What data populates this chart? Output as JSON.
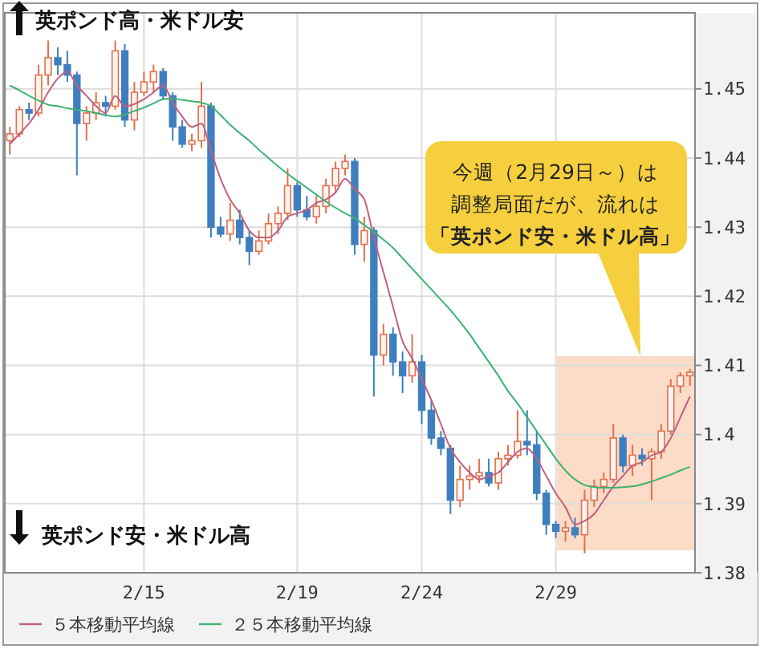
{
  "chart_data": {
    "type": "candlestick",
    "categories": [
      null,
      null,
      null,
      null,
      null,
      null,
      null,
      null,
      null,
      null,
      null,
      null,
      null,
      null,
      "2/15",
      null,
      null,
      null,
      null,
      null,
      null,
      null,
      null,
      null,
      null,
      null,
      null,
      null,
      null,
      null,
      "2/19",
      null,
      null,
      null,
      null,
      null,
      null,
      null,
      null,
      null,
      null,
      null,
      null,
      "2/24",
      null,
      null,
      null,
      null,
      null,
      null,
      null,
      null,
      null,
      null,
      null,
      null,
      null,
      "2/29",
      null,
      null,
      null,
      null,
      null,
      null,
      null,
      null,
      null,
      null,
      null,
      null,
      null,
      null
    ],
    "ohlc": [
      [
        1.4425,
        1.4445,
        1.4405,
        1.4435
      ],
      [
        1.4435,
        1.4475,
        1.443,
        1.447
      ],
      [
        1.447,
        1.448,
        1.4455,
        1.4465
      ],
      [
        1.4465,
        1.4535,
        1.446,
        1.452
      ],
      [
        1.452,
        1.457,
        1.4505,
        1.4545
      ],
      [
        1.4545,
        1.456,
        1.452,
        1.4535
      ],
      [
        1.4535,
        1.4555,
        1.451,
        1.452
      ],
      [
        1.452,
        1.4525,
        1.4375,
        1.445
      ],
      [
        1.445,
        1.4475,
        1.4425,
        1.4465
      ],
      [
        1.4465,
        1.4495,
        1.4455,
        1.448
      ],
      [
        1.448,
        1.449,
        1.446,
        1.4475
      ],
      [
        1.4475,
        1.457,
        1.447,
        1.4555
      ],
      [
        1.4555,
        1.4565,
        1.4445,
        1.4455
      ],
      [
        1.4455,
        1.451,
        1.444,
        1.4495
      ],
      [
        1.4495,
        1.4525,
        1.449,
        1.451
      ],
      [
        1.451,
        1.4535,
        1.4495,
        1.4525
      ],
      [
        1.4525,
        1.453,
        1.4485,
        1.449
      ],
      [
        1.449,
        1.4495,
        1.4425,
        1.4445
      ],
      [
        1.4445,
        1.4455,
        1.4415,
        1.442
      ],
      [
        1.442,
        1.4435,
        1.441,
        1.4425
      ],
      [
        1.4425,
        1.451,
        1.4415,
        1.4475
      ],
      [
        1.4475,
        1.448,
        1.4285,
        1.43
      ],
      [
        1.43,
        1.4315,
        1.4285,
        1.429
      ],
      [
        1.429,
        1.4335,
        1.428,
        1.431
      ],
      [
        1.431,
        1.4325,
        1.4275,
        1.4285
      ],
      [
        1.4285,
        1.4295,
        1.4245,
        1.4265
      ],
      [
        1.4265,
        1.4295,
        1.426,
        1.428
      ],
      [
        1.428,
        1.432,
        1.4275,
        1.4305
      ],
      [
        1.4305,
        1.433,
        1.429,
        1.432
      ],
      [
        1.432,
        1.4385,
        1.431,
        1.436
      ],
      [
        1.436,
        1.4365,
        1.4315,
        1.4325
      ],
      [
        1.4325,
        1.4345,
        1.431,
        1.4315
      ],
      [
        1.4315,
        1.4345,
        1.4305,
        1.433
      ],
      [
        1.433,
        1.437,
        1.432,
        1.436
      ],
      [
        1.436,
        1.4395,
        1.435,
        1.4385
      ],
      [
        1.4385,
        1.4405,
        1.4375,
        1.4395
      ],
      [
        1.4395,
        1.44,
        1.426,
        1.4275
      ],
      [
        1.4275,
        1.4315,
        1.425,
        1.4295
      ],
      [
        1.4295,
        1.43,
        1.4055,
        1.4115
      ],
      [
        1.4115,
        1.416,
        1.41,
        1.4145
      ],
      [
        1.4145,
        1.4155,
        1.4085,
        1.4105
      ],
      [
        1.4105,
        1.412,
        1.406,
        1.4085
      ],
      [
        1.4085,
        1.4145,
        1.4075,
        1.4105
      ],
      [
        1.4105,
        1.4115,
        1.4015,
        1.4035
      ],
      [
        1.4035,
        1.405,
        1.3985,
        1.3995
      ],
      [
        1.3995,
        1.4005,
        1.397,
        1.398
      ],
      [
        1.398,
        1.3985,
        1.3885,
        1.3905
      ],
      [
        1.3905,
        1.3955,
        1.3895,
        1.3935
      ],
      [
        1.3935,
        1.3955,
        1.392,
        1.394
      ],
      [
        1.394,
        1.3965,
        1.393,
        1.3945
      ],
      [
        1.3945,
        1.3965,
        1.3925,
        1.393
      ],
      [
        1.393,
        1.3975,
        1.392,
        1.3965
      ],
      [
        1.3965,
        1.3985,
        1.3955,
        1.397
      ],
      [
        1.397,
        1.4035,
        1.3965,
        1.399
      ],
      [
        1.399,
        1.4035,
        1.397,
        1.3985
      ],
      [
        1.3985,
        1.4005,
        1.3905,
        1.3915
      ],
      [
        1.3915,
        1.392,
        1.3855,
        1.387
      ],
      [
        1.387,
        1.3875,
        1.385,
        1.386
      ],
      [
        1.386,
        1.3875,
        1.3845,
        1.3865
      ],
      [
        1.3865,
        1.388,
        1.385,
        1.3855
      ],
      [
        1.3855,
        1.392,
        1.3828,
        1.3905
      ],
      [
        1.3905,
        1.3935,
        1.3895,
        1.3925
      ],
      [
        1.3925,
        1.3945,
        1.3915,
        1.3935
      ],
      [
        1.3935,
        1.4015,
        1.393,
        1.3995
      ],
      [
        1.3995,
        1.4,
        1.3945,
        1.3955
      ],
      [
        1.3955,
        1.3985,
        1.394,
        1.397
      ],
      [
        1.397,
        1.398,
        1.3955,
        1.3965
      ],
      [
        1.3965,
        1.398,
        1.3905,
        1.3975
      ],
      [
        1.3975,
        1.4015,
        1.3965,
        1.4005
      ],
      [
        1.4005,
        1.408,
        1.4,
        1.407
      ],
      [
        1.407,
        1.409,
        1.406,
        1.4085
      ],
      [
        1.4085,
        1.4095,
        1.407,
        1.409
      ]
    ],
    "colors": [
      "#e0714f",
      "#e0714f",
      "#3f7fbf",
      "#e0714f",
      "#e0714f",
      "#3f7fbf",
      "#3f7fbf",
      "#3f7fbf",
      "#e0714f",
      "#e0714f",
      "#3f7fbf",
      "#e0714f",
      "#3f7fbf",
      "#e0714f",
      "#e0714f",
      "#e0714f",
      "#3f7fbf",
      "#3f7fbf",
      "#3f7fbf",
      "#e0714f",
      "#e0714f",
      "#3f7fbf",
      "#3f7fbf",
      "#e0714f",
      "#3f7fbf",
      "#3f7fbf",
      "#e0714f",
      "#e0714f",
      "#e0714f",
      "#e0714f",
      "#3f7fbf",
      "#3f7fbf",
      "#e0714f",
      "#e0714f",
      "#e0714f",
      "#e0714f",
      "#3f7fbf",
      "#e0714f",
      "#3f7fbf",
      "#e0714f",
      "#3f7fbf",
      "#3f7fbf",
      "#e0714f",
      "#3f7fbf",
      "#3f7fbf",
      "#3f7fbf",
      "#3f7fbf",
      "#e0714f",
      "#e0714f",
      "#e0714f",
      "#3f7fbf",
      "#e0714f",
      "#e0714f",
      "#e0714f",
      "#3f7fbf",
      "#3f7fbf",
      "#3f7fbf",
      "#3f7fbf",
      "#e0714f",
      "#3f7fbf",
      "#e0714f",
      "#e0714f",
      "#e0714f",
      "#e0714f",
      "#3f7fbf",
      "#e0714f",
      "#3f7fbf",
      "#e0714f",
      "#e0714f",
      "#e0714f",
      "#e0714f",
      "#e0714f"
    ],
    "series": [
      {
        "name": "５本移動平均線",
        "type": "line",
        "color": "#c0607e",
        "values": [
          1.442,
          1.4435,
          1.445,
          1.447,
          1.4495,
          1.4515,
          1.4525,
          1.4505,
          1.449,
          1.4475,
          1.4465,
          1.449,
          1.4475,
          1.4478,
          1.4485,
          1.4495,
          1.4505,
          1.448,
          1.446,
          1.4445,
          1.445,
          1.441,
          1.437,
          1.434,
          1.432,
          1.4295,
          1.4285,
          1.4285,
          1.4295,
          1.4315,
          1.432,
          1.4325,
          1.4335,
          1.434,
          1.435,
          1.437,
          1.4355,
          1.434,
          1.4285,
          1.4235,
          1.4185,
          1.4135,
          1.411,
          1.408,
          1.405,
          1.4015,
          1.398,
          1.396,
          1.3945,
          1.3935,
          1.394,
          1.3945,
          1.396,
          1.3975,
          1.398,
          1.3965,
          1.394,
          1.3915,
          1.3895,
          1.387,
          1.3875,
          1.3885,
          1.3905,
          1.3925,
          1.394,
          1.3955,
          1.396,
          1.397,
          1.3975,
          1.3995,
          1.4025,
          1.4055
        ]
      },
      {
        "name": "２５本移動平均線",
        "type": "line",
        "color": "#3cb371",
        "values": [
          1.4505,
          1.4498,
          1.449,
          1.4483,
          1.4477,
          1.4475,
          1.4472,
          1.447,
          1.4468,
          1.4465,
          1.4462,
          1.446,
          1.4463,
          1.4468,
          1.4473,
          1.4479,
          1.4485,
          1.4486,
          1.4484,
          1.4482,
          1.448,
          1.4475,
          1.4462,
          1.4448,
          1.4436,
          1.4425,
          1.4412,
          1.44,
          1.4388,
          1.4377,
          1.4367,
          1.4357,
          1.4347,
          1.4337,
          1.4328,
          1.432,
          1.4313,
          1.4303,
          1.4293,
          1.4282,
          1.427,
          1.4255,
          1.424,
          1.4225,
          1.421,
          1.4195,
          1.418,
          1.4163,
          1.4145,
          1.4125,
          1.4105,
          1.4085,
          1.4063,
          1.4045,
          1.4025,
          1.4005,
          1.3985,
          1.3965,
          1.3948,
          1.3935,
          1.3927,
          1.3924,
          1.3923,
          1.3923,
          1.3924,
          1.3925,
          1.3928,
          1.3932,
          1.3937,
          1.3942,
          1.3948,
          1.3953
        ]
      }
    ],
    "ylim": [
      1.38,
      1.461
    ],
    "yticks": [
      {
        "value": 1.38,
        "label": "1.38"
      },
      {
        "value": 1.39,
        "label": "1.39"
      },
      {
        "value": 1.4,
        "label": "1.4"
      },
      {
        "value": 1.41,
        "label": "1.41"
      },
      {
        "value": 1.42,
        "label": "1.42"
      },
      {
        "value": 1.43,
        "label": "1.43"
      },
      {
        "value": 1.44,
        "label": "1.44"
      },
      {
        "value": 1.45,
        "label": "1.45"
      }
    ],
    "grid": true,
    "legend": "bottom",
    "annotations": [
      "英ポンド高・米ドル安",
      "英ポンド安・米ドル高",
      "今週（2月29日～）は調整局面だが、流れは「英ポンド安・米ドル高」"
    ]
  }
}
